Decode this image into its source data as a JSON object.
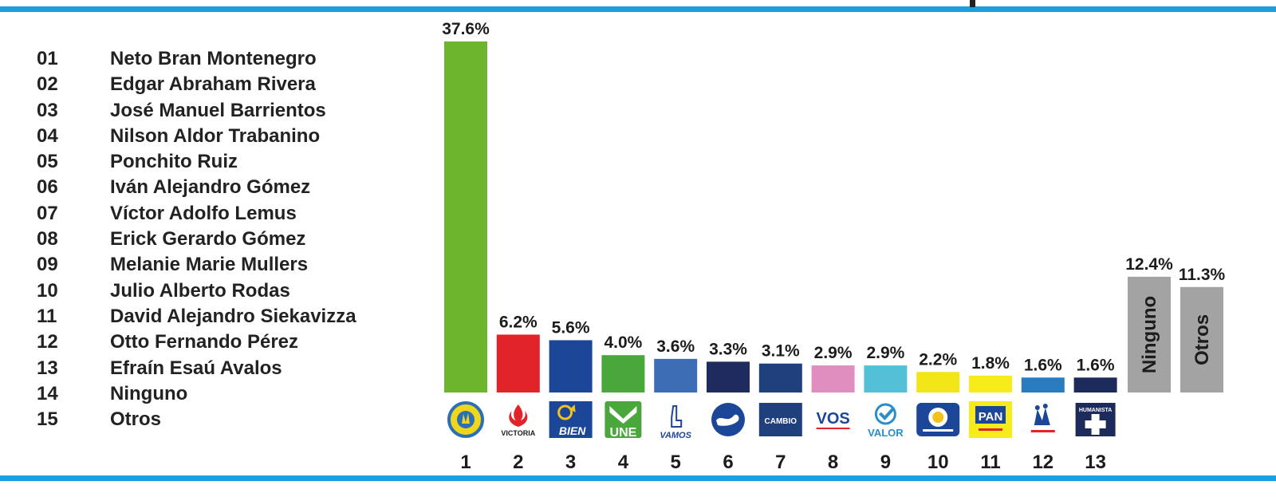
{
  "legend": [
    {
      "num": "01",
      "name": "Neto Bran Montenegro"
    },
    {
      "num": "02",
      "name": "Edgar Abraham Rivera"
    },
    {
      "num": "03",
      "name": "José Manuel Barrientos"
    },
    {
      "num": "04",
      "name": "Nilson Aldor Trabanino"
    },
    {
      "num": "05",
      "name": "Ponchito Ruiz"
    },
    {
      "num": "06",
      "name": "Iván Alejandro Gómez"
    },
    {
      "num": "07",
      "name": "Víctor Adolfo Lemus"
    },
    {
      "num": "08",
      "name": "Erick Gerardo Gómez"
    },
    {
      "num": "09",
      "name": "Melanie Marie Mullers"
    },
    {
      "num": "10",
      "name": "Julio Alberto Rodas"
    },
    {
      "num": "11",
      "name": "David Alejandro Siekavizza"
    },
    {
      "num": "12",
      "name": "Otto Fernando Pérez"
    },
    {
      "num": "13",
      "name": "Efraín Esaú Avalos"
    },
    {
      "num": "14",
      "name": "Ninguno"
    },
    {
      "num": "15",
      "name": "Otros"
    }
  ],
  "logos": [
    {
      "icon": "partido-popular-logo"
    },
    {
      "icon": "victoria-logo",
      "text": "VICTORIA"
    },
    {
      "icon": "bien-logo",
      "text": "BIEN"
    },
    {
      "icon": "une-logo",
      "text": "UNE"
    },
    {
      "icon": "vamos-logo",
      "text": "VAMOS"
    },
    {
      "icon": "handshake-logo"
    },
    {
      "icon": "cambio-logo",
      "text": "CAMBIO"
    },
    {
      "icon": "vos-logo",
      "text": "VOS"
    },
    {
      "icon": "valor-logo",
      "text": "VALOR"
    },
    {
      "icon": "prosperidad-ciudadana-logo"
    },
    {
      "icon": "pan-logo",
      "text": "PAN"
    },
    {
      "icon": "union-republicana-logo"
    },
    {
      "icon": "humanista-logo",
      "text": "HUMANISTA"
    }
  ],
  "colors": {
    "rule": "#1a9fe0",
    "gray_bar": "#a3a3a3"
  },
  "chart_data": {
    "type": "bar",
    "categories": [
      "1",
      "2",
      "3",
      "4",
      "5",
      "6",
      "7",
      "8",
      "9",
      "10",
      "11",
      "12",
      "13",
      "Ninguno",
      "Otros"
    ],
    "values": [
      37.6,
      6.2,
      5.6,
      4.0,
      3.6,
      3.3,
      3.1,
      2.9,
      2.9,
      2.2,
      1.8,
      1.6,
      1.6,
      12.4,
      11.3
    ],
    "value_labels": [
      "37.6%",
      "6.2%",
      "5.6%",
      "4.0%",
      "3.6%",
      "3.3%",
      "3.1%",
      "2.9%",
      "2.9%",
      "2.2%",
      "1.8%",
      "1.6%",
      "1.6%",
      "12.4%",
      "11.3%"
    ],
    "colors": [
      "#6cb52d",
      "#e2242a",
      "#1c4698",
      "#4aa73c",
      "#3d6db5",
      "#1f2a5e",
      "#1f3f7d",
      "#e08ec0",
      "#54c0d8",
      "#f2e619",
      "#f7ec1a",
      "#2a7cc0",
      "#1d2b5c",
      "#a3a3a3",
      "#a3a3a3"
    ],
    "xlabel": "",
    "ylabel": "",
    "ylim": [
      0,
      37.6
    ],
    "grid": false
  }
}
